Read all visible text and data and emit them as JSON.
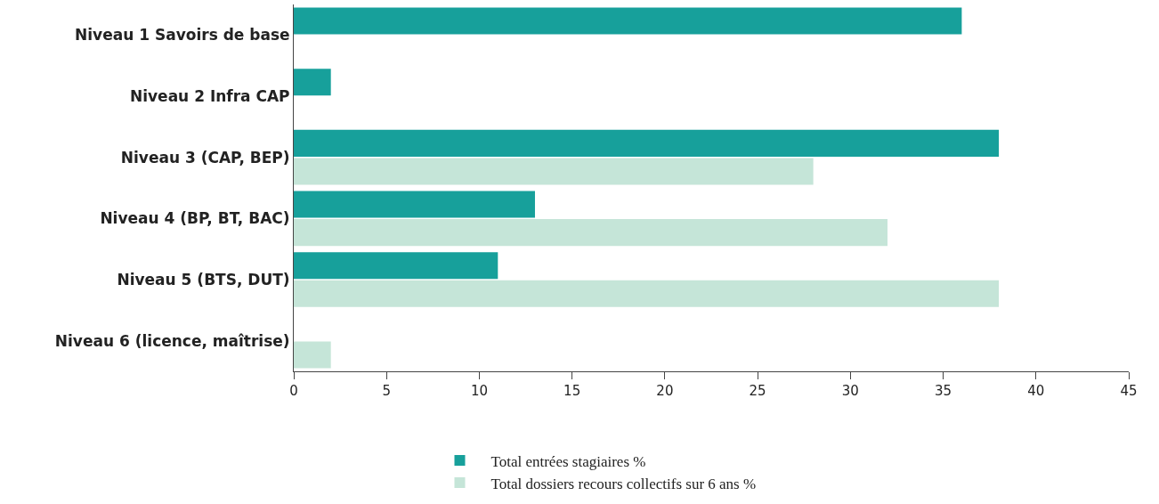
{
  "chart_data": {
    "type": "bar",
    "orientation": "horizontal",
    "categories": [
      "Niveau 1 Savoirs de base",
      "Niveau 2 Infra CAP",
      "Niveau 3 (CAP, BEP)",
      "Niveau 4 (BP, BT, BAC)",
      "Niveau 5 (BTS, DUT)",
      "Niveau 6 (licence, maîtrise)"
    ],
    "series": [
      {
        "name": "Total entrées stagiaires %",
        "color": "#17a09b",
        "values": [
          36,
          2,
          38,
          13,
          11,
          null
        ]
      },
      {
        "name": "Total dossiers recours collectifs sur 6 ans %",
        "color": "#c5e5d8",
        "values": [
          null,
          null,
          28,
          32,
          38,
          2
        ]
      }
    ],
    "xlim": [
      0,
      45
    ],
    "xticks": [
      0,
      5,
      10,
      15,
      20,
      25,
      30,
      35,
      40,
      45
    ],
    "grid": false,
    "legend": "bottom"
  }
}
